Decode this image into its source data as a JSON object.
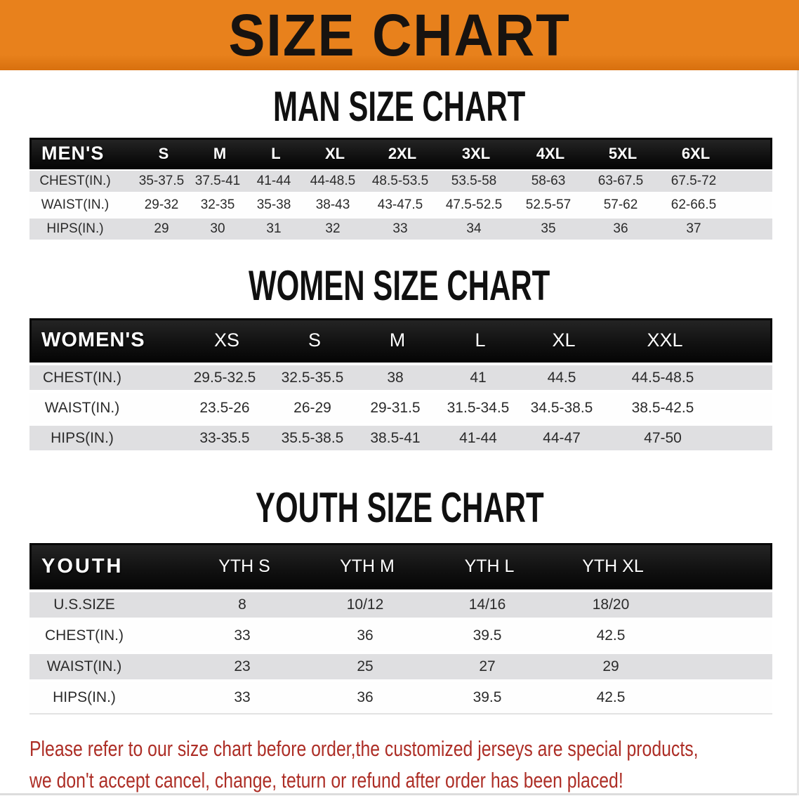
{
  "colors": {
    "banner-orange": "#e8811c",
    "band-gray": "#dfdfe1",
    "bar-black": "#121212",
    "footer-red": "#ad2e26"
  },
  "banner": {
    "title": "SIZE CHART"
  },
  "sections": [
    {
      "key": "men",
      "heading": "MAN SIZE CHART",
      "corner": "MEN'S",
      "columns": [
        "S",
        "M",
        "L",
        "XL",
        "2XL",
        "3XL",
        "4XL",
        "5XL",
        "6XL"
      ],
      "rows": [
        {
          "label": "CHEST(IN.)",
          "values": [
            "35-37.5",
            "37.5-41",
            "41-44",
            "44-48.5",
            "48.5-53.5",
            "53.5-58",
            "58-63",
            "63-67.5",
            "67.5-72"
          ]
        },
        {
          "label": "WAIST(IN.)",
          "values": [
            "29-32",
            "32-35",
            "35-38",
            "38-43",
            "43-47.5",
            "47.5-52.5",
            "52.5-57",
            "57-62",
            "62-66.5"
          ]
        },
        {
          "label": "HIPS(IN.)",
          "values": [
            "29",
            "30",
            "31",
            "32",
            "33",
            "34",
            "35",
            "36",
            "37"
          ]
        }
      ]
    },
    {
      "key": "women",
      "heading": "WOMEN SIZE CHART",
      "corner": "WOMEN'S",
      "columns": [
        "XS",
        "S",
        "M",
        "L",
        "XL",
        "XXL"
      ],
      "rows": [
        {
          "label": "CHEST(IN.)",
          "values": [
            "29.5-32.5",
            "32.5-35.5",
            "38",
            "41",
            "44.5",
            "44.5-48.5"
          ]
        },
        {
          "label": "WAIST(IN.)",
          "values": [
            "23.5-26",
            "26-29",
            "29-31.5",
            "31.5-34.5",
            "34.5-38.5",
            "38.5-42.5"
          ]
        },
        {
          "label": "HIPS(IN.)",
          "values": [
            "33-35.5",
            "35.5-38.5",
            "38.5-41",
            "41-44",
            "44-47",
            "47-50"
          ]
        }
      ]
    },
    {
      "key": "youth",
      "heading": "YOUTH SIZE CHART",
      "corner": "YOUTH",
      "columns": [
        "YTH S",
        "YTH M",
        "YTH L",
        "YTH XL"
      ],
      "rows": [
        {
          "label": "U.S.SIZE",
          "values": [
            "8",
            "10/12",
            "14/16",
            "18/20"
          ]
        },
        {
          "label": "CHEST(IN.)",
          "values": [
            "33",
            "36",
            "39.5",
            "42.5"
          ]
        },
        {
          "label": "WAIST(IN.)",
          "values": [
            "23",
            "25",
            "27",
            "29"
          ]
        },
        {
          "label": "HIPS(IN.)",
          "values": [
            "33",
            "36",
            "39.5",
            "42.5"
          ]
        }
      ]
    }
  ],
  "footer": {
    "line1": "Please refer to our size chart before order,the customized jerseys are special products,",
    "line2": "we don't accept cancel, change, teturn or refund after order has been placed!"
  }
}
